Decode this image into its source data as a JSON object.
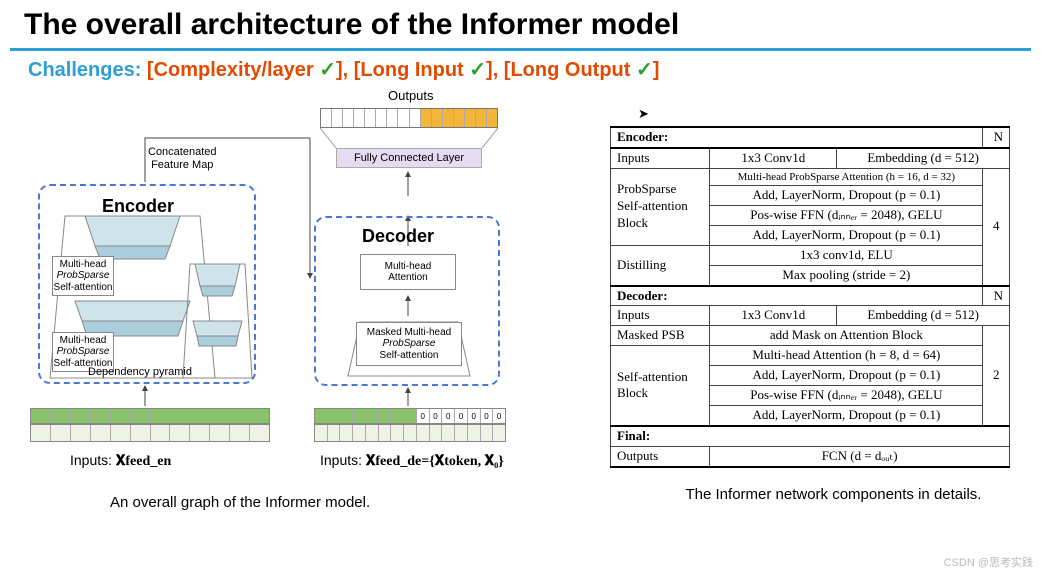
{
  "title": "The overall architecture of the Informer model",
  "challenges": {
    "label": "Challenges:",
    "items": [
      "[Complexity/layer ",
      "], [Long Input ",
      "], [Long Output ",
      "]"
    ],
    "check": "✓"
  },
  "diagram": {
    "outputs_label": "Outputs",
    "output_cells": {
      "total": 16,
      "empty": 9,
      "filled_color": "#f5b43a"
    },
    "fully_connected": "Fully Connected Layer",
    "concat_label_1": "Concatenated",
    "concat_label_2": "Feature Map",
    "encoder_label": "Encoder",
    "decoder_label": "Decoder",
    "enc_block_1": [
      "Multi-head",
      "ProbSparse",
      "Self-attention"
    ],
    "enc_block_2": [
      "Multi-head",
      "ProbSparse",
      "Self-attention"
    ],
    "dep_label": "Dependency pyramid",
    "dec_block_1": [
      "Multi-head",
      "Attention"
    ],
    "dec_block_2": [
      "Masked Multi-head",
      "ProbSparse",
      "Self-attention"
    ],
    "inputs_en_cells": 12,
    "inputs_de_green": 8,
    "inputs_de_zero": 7,
    "inputs_label_en_prefix": "Inputs:  ",
    "inputs_label_en_math": "𝐗feed_en",
    "inputs_label_de_prefix": "Inputs:  ",
    "inputs_label_de_math": "𝐗feed_de={𝐗token, 𝐗₀}",
    "zero": "0",
    "colors": {
      "green": "#8cc36a",
      "pale": "#eef3e6",
      "dash_border": "#4a78d6",
      "fcl_bg": "#e4ddf2",
      "trap_light": "#cfe3ea",
      "trap_mid": "#aacedb"
    },
    "caption": "An overall graph of the Informer model."
  },
  "table": {
    "header_encoder": "Encoder:",
    "header_decoder": "Decoder:",
    "header_final": "Final:",
    "N": "N",
    "encoder_N": "4",
    "decoder_N": "2",
    "rows_encoder": [
      {
        "label": "Inputs",
        "cells": [
          "1x3 Conv1d",
          "Embedding (d = 512)"
        ]
      },
      {
        "label_rows": 4,
        "label": "ProbSparse\nSelf-attention\nBlock",
        "cells": [
          "Multi-head ProbSparse Attention (h = 16, d = 32)",
          "Add, LayerNorm, Dropout (p = 0.1)",
          "Pos-wise FFN (dᵢₙₙₑᵣ = 2048), GELU",
          "Add, LayerNorm, Dropout (p = 0.1)"
        ]
      },
      {
        "label_rows": 2,
        "label": "Distilling",
        "cells": [
          "1x3 conv1d, ELU",
          "Max pooling (stride = 2)"
        ]
      }
    ],
    "rows_decoder": [
      {
        "label": "Inputs",
        "cells": [
          "1x3 Conv1d",
          "Embedding (d = 512)"
        ]
      },
      {
        "label": "Masked PSB",
        "cells": [
          "add Mask on Attention Block"
        ]
      },
      {
        "label_rows": 4,
        "label": "Self-attention\nBlock",
        "cells": [
          "Multi-head Attention (h = 8, d = 64)",
          "Add, LayerNorm, Dropout (p = 0.1)",
          "Pos-wise FFN (dᵢₙₙₑᵣ = 2048), GELU",
          "Add, LayerNorm, Dropout (p = 0.1)"
        ]
      }
    ],
    "rows_final": [
      {
        "label": "Outputs",
        "cells": [
          "FCN (d = dₒᵤₜ)"
        ]
      }
    ],
    "caption": "The Informer network components in details."
  },
  "watermark": "CSDN @思考实践"
}
